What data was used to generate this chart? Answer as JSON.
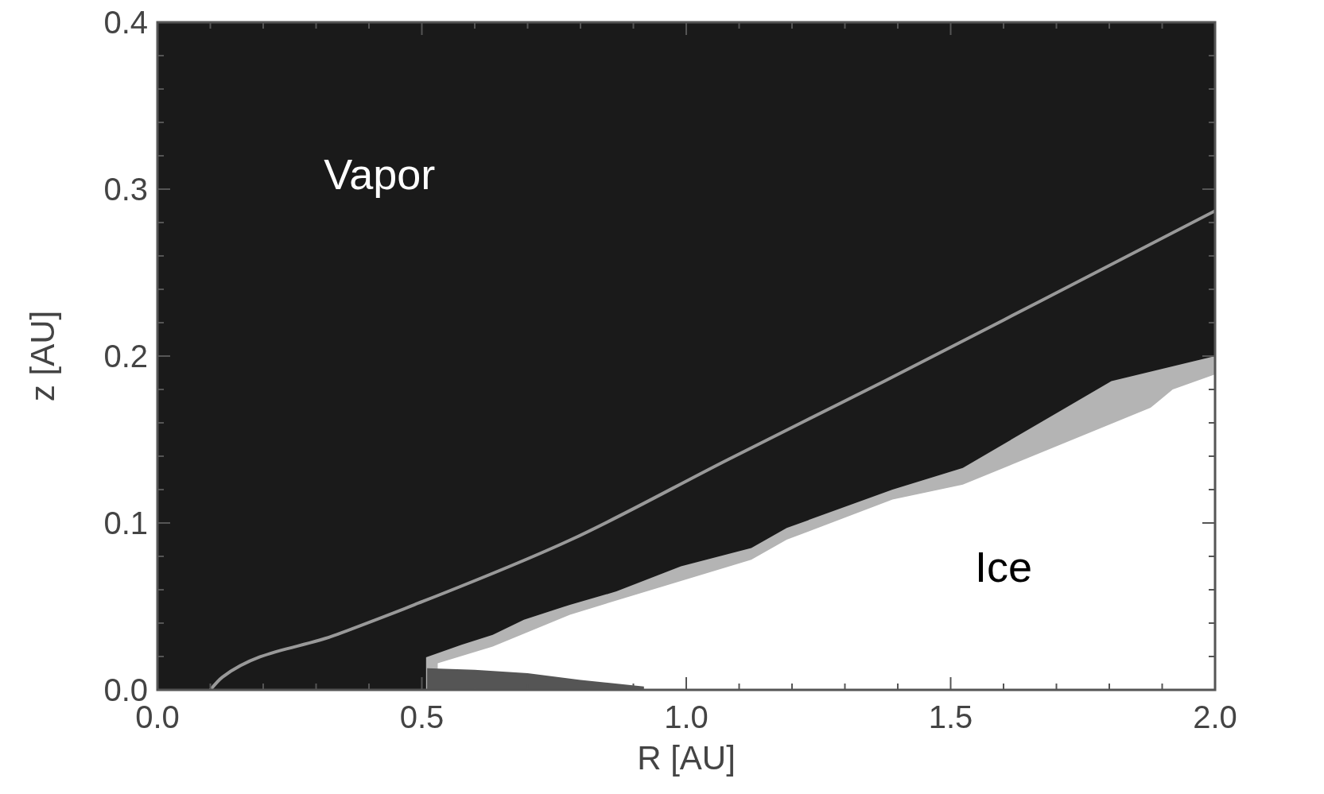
{
  "chart_data": {
    "type": "area",
    "xlabel": "R [AU]",
    "ylabel": "z [AU]",
    "xlim": [
      0,
      2
    ],
    "ylim": [
      0,
      0.4
    ],
    "xticks": [
      {
        "value": 0,
        "label": "0.0"
      },
      {
        "value": 0.5,
        "label": "0.5"
      },
      {
        "value": 1,
        "label": "1.0"
      },
      {
        "value": 1.5,
        "label": "1.5"
      },
      {
        "value": 2,
        "label": "2.0"
      }
    ],
    "yticks": [
      {
        "value": 0,
        "label": "0.0"
      },
      {
        "value": 0.1,
        "label": "0.1"
      },
      {
        "value": 0.2,
        "label": "0.2"
      },
      {
        "value": 0.3,
        "label": "0.3"
      },
      {
        "value": 0.4,
        "label": "0.4"
      }
    ],
    "series": [
      {
        "color": "#b4b4b4",
        "x": [
          0.508,
          0.575,
          0.634,
          0.693,
          0.78,
          0.868,
          0.99,
          1.123,
          1.19,
          1.39,
          1.523,
          1.804,
          2.0
        ],
        "values": [
          0.0195,
          0.027,
          0.033,
          0.042,
          0.051,
          0.059,
          0.074,
          0.085,
          0.097,
          0.12,
          0.133,
          0.185,
          0.2
        ]
      },
      {
        "color": "#ffffff",
        "x": [
          0.53,
          0.634,
          0.78,
          0.883,
          1.123,
          1.19,
          1.39,
          1.523,
          1.878,
          1.92,
          2.0
        ],
        "values": [
          0.016,
          0.026,
          0.045,
          0.055,
          0.078,
          0.09,
          0.114,
          0.123,
          0.169,
          0.18,
          0.189
        ]
      },
      {
        "color": "#555555",
        "x": [
          0.51,
          0.6,
          0.7,
          0.8,
          0.92
        ],
        "values": [
          0.013,
          0.012,
          0.01,
          0.006,
          0.002
        ]
      },
      {
        "type": "line",
        "color": "#999999",
        "x": [
          0.1,
          0.123,
          0.338,
          0.486,
          0.782,
          1.079,
          1.375,
          1.67,
          2.0
        ],
        "values": [
          0,
          0.0077,
          0.033,
          0.051,
          0.09,
          0.138,
          0.185,
          0.233,
          0.287
        ]
      }
    ],
    "annotations": [
      "Vapor",
      "Ice"
    ]
  }
}
